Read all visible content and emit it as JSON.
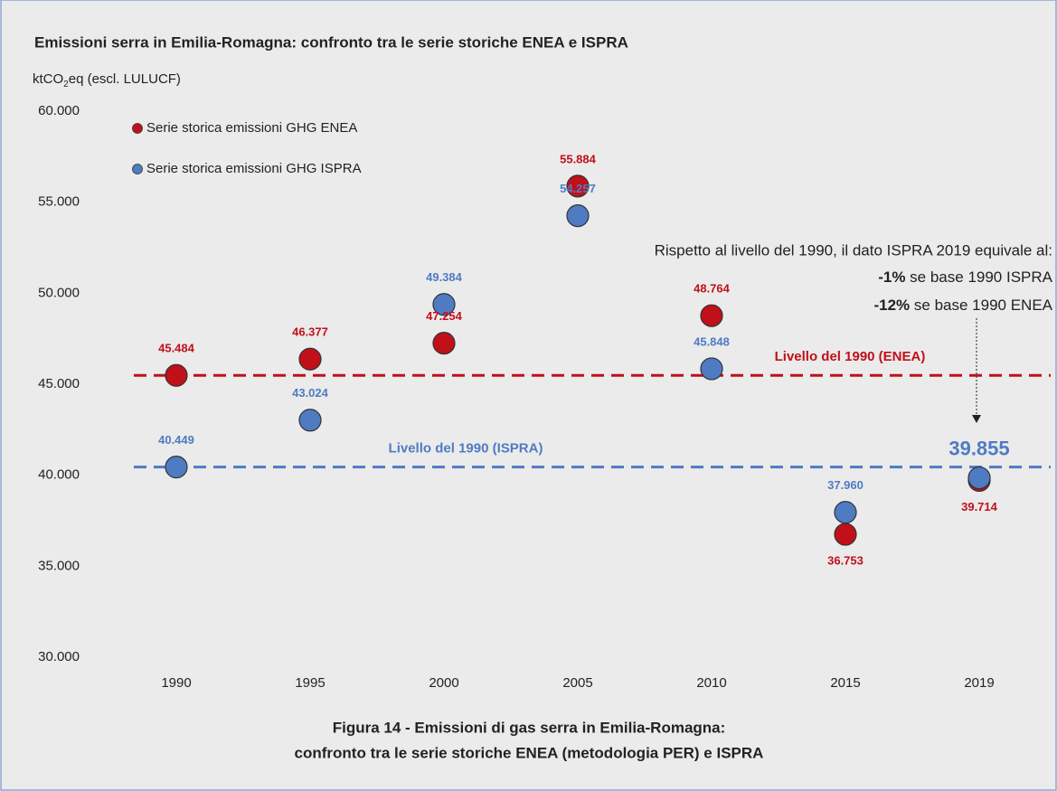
{
  "chart_data": {
    "type": "scatter",
    "title": "Emissioni serra in Emilia-Romagna: confronto tra le serie storiche ENEA e ISPRA",
    "y_label": [
      "ktCO",
      "2",
      "eq (escl. LULUCF)"
    ],
    "categories": [
      "1990",
      "1995",
      "2000",
      "2005",
      "2010",
      "2015",
      "2019"
    ],
    "series": [
      {
        "name": "Serie storica emissioni GHG ENEA",
        "color": "#c0101a",
        "values": [
          45484,
          46377,
          47254,
          55884,
          48764,
          36753,
          39714
        ],
        "value_labels": [
          "45.484",
          "46.377",
          "47.254",
          "55.884",
          "48.764",
          "36.753",
          "39.714"
        ]
      },
      {
        "name": "Serie storica emissioni GHG ISPRA",
        "color": "#4f7bc3",
        "values": [
          40449,
          43024,
          49384,
          54257,
          45848,
          37960,
          39855
        ],
        "value_labels": [
          "40.449",
          "43.024",
          "49.384",
          "54.257",
          "45.848",
          "37.960",
          "39.855"
        ]
      }
    ],
    "reference_lines": [
      {
        "label": "Livello del 1990 (ENEA)",
        "value": 45484,
        "color": "#c0101a"
      },
      {
        "label": "Livello del 1990 (ISPRA)",
        "value": 40449,
        "color": "#4f7bc3"
      }
    ],
    "annotation": {
      "text": "Rispetto al livello del 1990, il dato ISPRA 2019 equivale al:",
      "lines": [
        {
          "bold": "-1%",
          "text": " se base 1990 ISPRA"
        },
        {
          "bold": "-12%",
          "text": " se base 1990 ENEA"
        }
      ]
    },
    "ylim": [
      30000,
      60000
    ],
    "yticks": [
      {
        "value": 30000,
        "label": "30.000"
      },
      {
        "value": 35000,
        "label": "35.000"
      },
      {
        "value": 40000,
        "label": "40.000"
      },
      {
        "value": 45000,
        "label": "45.000"
      },
      {
        "value": 50000,
        "label": "50.000"
      },
      {
        "value": 55000,
        "label": "55.000"
      },
      {
        "value": 60000,
        "label": "60.000"
      }
    ],
    "legend": "upper left",
    "caption": [
      "Figura 14 - Emissioni di gas serra in Emilia-Romagna:",
      "confronto tra le serie storiche ENEA (metodologia PER) e ISPRA"
    ]
  }
}
